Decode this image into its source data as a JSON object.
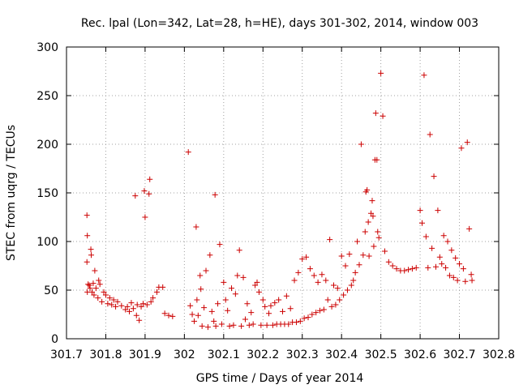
{
  "chart_data": {
    "type": "scatter",
    "title": "Rec. lpal (Lon=342, Lat=28, h=HE), days 301-302, 2014, window 003",
    "xlabel": "GPS time / Days of year 2014",
    "ylabel": "STEC from uqrg / TECUs",
    "xlim": [
      301.7,
      302.8
    ],
    "ylim": [
      0,
      300
    ],
    "xticks": [
      "301.7",
      "301.8",
      "301.9",
      "302",
      "302.1",
      "302.2",
      "302.3",
      "302.4",
      "302.5",
      "302.6",
      "302.7",
      "302.8"
    ],
    "yticks": [
      "0",
      "50",
      "100",
      "150",
      "200",
      "250",
      "300"
    ],
    "marker": "+",
    "color": "#cc0000",
    "grid": true,
    "points": [
      [
        301.752,
        127
      ],
      [
        301.753,
        106
      ],
      [
        301.752,
        79
      ],
      [
        301.755,
        56
      ],
      [
        301.753,
        48
      ],
      [
        301.758,
        55
      ],
      [
        301.76,
        52
      ],
      [
        301.762,
        92
      ],
      [
        301.763,
        86
      ],
      [
        301.765,
        48
      ],
      [
        301.768,
        57
      ],
      [
        301.77,
        45
      ],
      [
        301.772,
        70
      ],
      [
        301.775,
        52
      ],
      [
        301.78,
        42
      ],
      [
        301.782,
        60
      ],
      [
        301.785,
        56
      ],
      [
        301.79,
        38
      ],
      [
        301.795,
        48
      ],
      [
        301.8,
        45
      ],
      [
        301.805,
        36
      ],
      [
        301.81,
        42
      ],
      [
        301.815,
        35
      ],
      [
        301.82,
        40
      ],
      [
        301.825,
        33
      ],
      [
        301.83,
        38
      ],
      [
        301.84,
        34
      ],
      [
        301.85,
        30
      ],
      [
        301.855,
        33
      ],
      [
        301.86,
        28
      ],
      [
        301.865,
        37
      ],
      [
        301.87,
        31
      ],
      [
        301.875,
        147
      ],
      [
        301.878,
        24
      ],
      [
        301.88,
        35
      ],
      [
        301.885,
        19
      ],
      [
        301.89,
        33
      ],
      [
        301.895,
        36
      ],
      [
        301.898,
        152
      ],
      [
        301.9,
        125
      ],
      [
        301.905,
        35
      ],
      [
        301.91,
        149
      ],
      [
        301.912,
        164
      ],
      [
        301.915,
        38
      ],
      [
        301.92,
        42
      ],
      [
        301.93,
        48
      ],
      [
        301.935,
        53
      ],
      [
        301.945,
        53
      ],
      [
        301.95,
        26
      ],
      [
        301.96,
        24
      ],
      [
        301.97,
        23
      ],
      [
        302.01,
        192
      ],
      [
        302.015,
        34
      ],
      [
        302.02,
        25
      ],
      [
        302.025,
        18
      ],
      [
        302.03,
        115
      ],
      [
        302.032,
        40
      ],
      [
        302.035,
        24
      ],
      [
        302.04,
        65
      ],
      [
        302.042,
        51
      ],
      [
        302.045,
        13
      ],
      [
        302.05,
        32
      ],
      [
        302.055,
        70
      ],
      [
        302.06,
        12
      ],
      [
        302.065,
        86
      ],
      [
        302.07,
        28
      ],
      [
        302.075,
        18
      ],
      [
        302.078,
        148
      ],
      [
        302.08,
        13
      ],
      [
        302.085,
        36
      ],
      [
        302.09,
        97
      ],
      [
        302.095,
        15
      ],
      [
        302.1,
        58
      ],
      [
        302.105,
        40
      ],
      [
        302.11,
        29
      ],
      [
        302.115,
        13
      ],
      [
        302.12,
        52
      ],
      [
        302.125,
        14
      ],
      [
        302.13,
        46
      ],
      [
        302.135,
        65
      ],
      [
        302.14,
        91
      ],
      [
        302.145,
        13
      ],
      [
        302.15,
        63
      ],
      [
        302.155,
        20
      ],
      [
        302.16,
        36
      ],
      [
        302.165,
        14
      ],
      [
        302.17,
        27
      ],
      [
        302.175,
        15
      ],
      [
        302.18,
        55
      ],
      [
        302.185,
        58
      ],
      [
        302.19,
        48
      ],
      [
        302.195,
        14
      ],
      [
        302.2,
        40
      ],
      [
        302.205,
        33
      ],
      [
        302.21,
        14
      ],
      [
        302.215,
        26
      ],
      [
        302.22,
        34
      ],
      [
        302.225,
        14
      ],
      [
        302.23,
        37
      ],
      [
        302.235,
        15
      ],
      [
        302.24,
        40
      ],
      [
        302.245,
        15
      ],
      [
        302.25,
        28
      ],
      [
        302.255,
        15
      ],
      [
        302.26,
        44
      ],
      [
        302.265,
        15
      ],
      [
        302.27,
        31
      ],
      [
        302.275,
        17
      ],
      [
        302.28,
        60
      ],
      [
        302.285,
        17
      ],
      [
        302.29,
        68
      ],
      [
        302.295,
        18
      ],
      [
        302.3,
        82
      ],
      [
        302.305,
        21
      ],
      [
        302.31,
        84
      ],
      [
        302.315,
        22
      ],
      [
        302.32,
        72
      ],
      [
        302.325,
        25
      ],
      [
        302.33,
        65
      ],
      [
        302.335,
        27
      ],
      [
        302.34,
        58
      ],
      [
        302.345,
        29
      ],
      [
        302.35,
        66
      ],
      [
        302.355,
        30
      ],
      [
        302.36,
        60
      ],
      [
        302.365,
        40
      ],
      [
        302.37,
        102
      ],
      [
        302.375,
        33
      ],
      [
        302.38,
        55
      ],
      [
        302.385,
        35
      ],
      [
        302.39,
        52
      ],
      [
        302.395,
        40
      ],
      [
        302.4,
        85
      ],
      [
        302.405,
        45
      ],
      [
        302.41,
        75
      ],
      [
        302.415,
        50
      ],
      [
        302.42,
        87
      ],
      [
        302.425,
        55
      ],
      [
        302.43,
        60
      ],
      [
        302.435,
        68
      ],
      [
        302.44,
        100
      ],
      [
        302.445,
        76
      ],
      [
        302.45,
        200
      ],
      [
        302.455,
        86
      ],
      [
        302.46,
        110
      ],
      [
        302.462,
        151
      ],
      [
        302.465,
        153
      ],
      [
        302.468,
        120
      ],
      [
        302.47,
        85
      ],
      [
        302.475,
        129
      ],
      [
        302.478,
        142
      ],
      [
        302.48,
        126
      ],
      [
        302.482,
        95
      ],
      [
        302.485,
        184
      ],
      [
        302.487,
        232
      ],
      [
        302.49,
        184
      ],
      [
        302.492,
        110
      ],
      [
        302.495,
        104
      ],
      [
        302.5,
        273
      ],
      [
        302.505,
        229
      ],
      [
        302.51,
        90
      ],
      [
        302.52,
        79
      ],
      [
        302.53,
        75
      ],
      [
        302.54,
        72
      ],
      [
        302.55,
        70
      ],
      [
        302.56,
        70
      ],
      [
        302.57,
        71
      ],
      [
        302.58,
        72
      ],
      [
        302.59,
        73
      ],
      [
        302.6,
        132
      ],
      [
        302.605,
        119
      ],
      [
        302.61,
        271
      ],
      [
        302.615,
        105
      ],
      [
        302.62,
        73
      ],
      [
        302.625,
        210
      ],
      [
        302.63,
        93
      ],
      [
        302.635,
        167
      ],
      [
        302.64,
        74
      ],
      [
        302.645,
        132
      ],
      [
        302.65,
        84
      ],
      [
        302.655,
        77
      ],
      [
        302.66,
        106
      ],
      [
        302.665,
        73
      ],
      [
        302.67,
        100
      ],
      [
        302.675,
        65
      ],
      [
        302.68,
        91
      ],
      [
        302.685,
        63
      ],
      [
        302.69,
        83
      ],
      [
        302.695,
        60
      ],
      [
        302.7,
        77
      ],
      [
        302.705,
        196
      ],
      [
        302.71,
        72
      ],
      [
        302.715,
        59
      ],
      [
        302.72,
        202
      ],
      [
        302.725,
        113
      ],
      [
        302.73,
        66
      ],
      [
        302.732,
        60
      ]
    ]
  }
}
